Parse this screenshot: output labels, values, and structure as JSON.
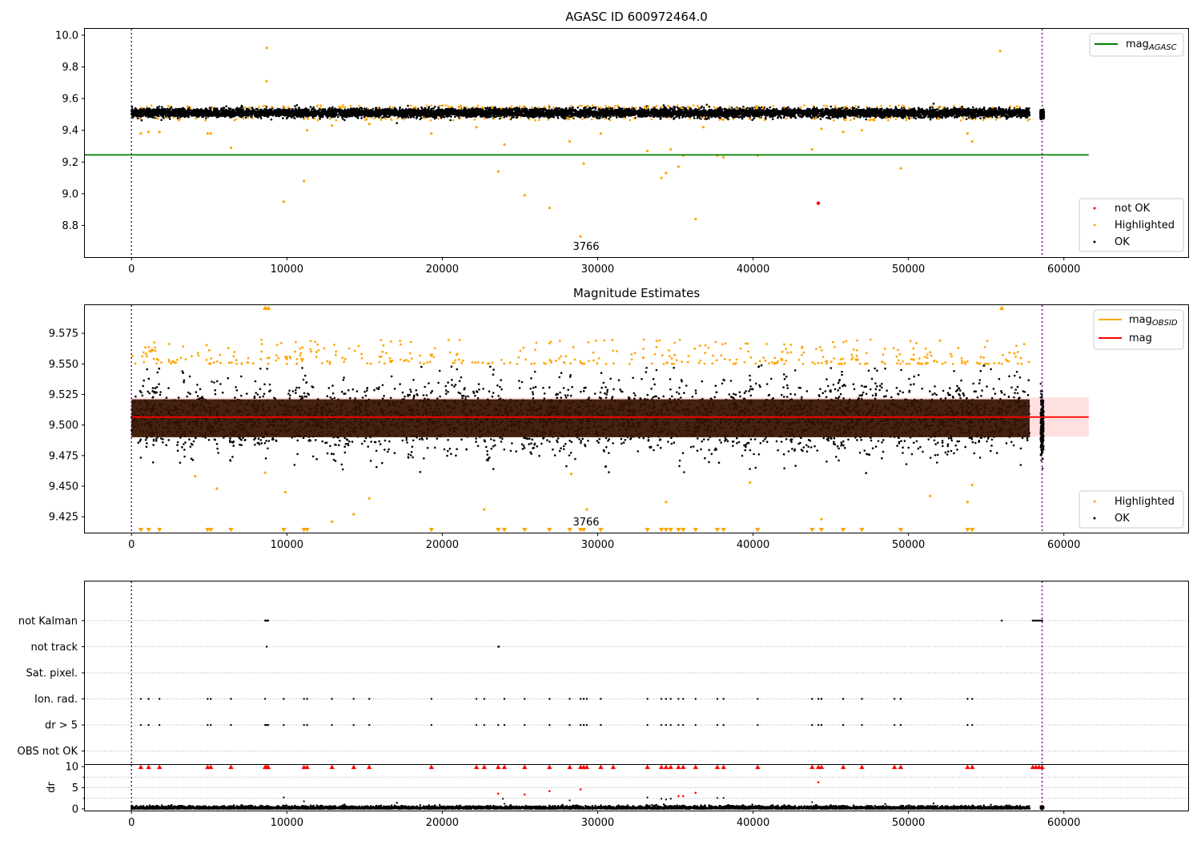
{
  "chart_data": [
    {
      "type": "scatter",
      "title": "AGASC ID 600972464.0",
      "xlabel": "",
      "ylabel": "",
      "xlim": [
        -3000,
        68000
      ],
      "ylim": [
        8.6,
        10.04
      ],
      "xticks": [
        0,
        10000,
        20000,
        30000,
        40000,
        50000,
        60000
      ],
      "yticks": [
        8.8,
        9.0,
        9.2,
        9.4,
        9.6,
        9.8,
        10.0
      ],
      "annotation": {
        "text": "3766",
        "x": 29300,
        "y": 8.68
      },
      "vlines": [
        0,
        58600
      ],
      "hline": {
        "name": "mag_AGASC",
        "y": 9.245,
        "xmin": -3000,
        "xmax": 61600,
        "color": "#008000"
      },
      "band": {
        "xmin": 0,
        "xmax": 57800,
        "center": 9.51,
        "half_width": 0.03
      },
      "cluster": {
        "x": 58600,
        "center": 9.5,
        "half_width": 0.03
      },
      "series": [
        {
          "name": "not OK",
          "color": "#ff0000",
          "points": [
            [
              44200,
              8.94
            ]
          ]
        },
        {
          "name": "Highlighted",
          "color": "#ffa500",
          "points": [
            [
              8700,
              9.92
            ],
            [
              8700,
              9.71
            ],
            [
              55900,
              9.9
            ],
            [
              9800,
              8.95
            ],
            [
              11100,
              9.08
            ],
            [
              23600,
              9.14
            ],
            [
              25300,
              8.99
            ],
            [
              26900,
              8.91
            ],
            [
              28900,
              8.73
            ],
            [
              29100,
              9.19
            ],
            [
              33200,
              9.27
            ],
            [
              34100,
              9.1
            ],
            [
              34400,
              9.13
            ],
            [
              34700,
              9.28
            ],
            [
              35200,
              9.17
            ],
            [
              35500,
              9.24
            ],
            [
              36300,
              8.84
            ],
            [
              37700,
              9.24
            ],
            [
              38100,
              9.23
            ],
            [
              40300,
              9.24
            ],
            [
              43800,
              9.28
            ],
            [
              49500,
              9.16
            ],
            [
              6400,
              9.29
            ],
            [
              24000,
              9.31
            ],
            [
              28200,
              9.33
            ],
            [
              30200,
              9.38
            ],
            [
              36800,
              9.42
            ],
            [
              45800,
              9.39
            ],
            [
              47000,
              9.4
            ],
            [
              53800,
              9.38
            ],
            [
              54100,
              9.33
            ],
            [
              19300,
              9.38
            ],
            [
              4900,
              9.38
            ],
            [
              5100,
              9.38
            ],
            [
              600,
              9.38
            ],
            [
              1100,
              9.39
            ],
            [
              1800,
              9.39
            ],
            [
              11300,
              9.4
            ],
            [
              12900,
              9.43
            ],
            [
              15300,
              9.44
            ],
            [
              22200,
              9.42
            ],
            [
              44400,
              9.41
            ]
          ]
        }
      ]
    },
    {
      "type": "scatter",
      "title": "Magnitude Estimates",
      "xlabel": "",
      "ylabel": "",
      "xlim": [
        -3000,
        68000
      ],
      "ylim": [
        9.412,
        9.598
      ],
      "xticks": [
        0,
        10000,
        20000,
        30000,
        40000,
        50000,
        60000
      ],
      "yticks": [
        9.425,
        9.45,
        9.475,
        9.5,
        9.525,
        9.55,
        9.575
      ],
      "annotation": {
        "text": "3766",
        "x": 29300,
        "y": 9.4165
      },
      "vlines": [
        0,
        58600
      ],
      "hline": {
        "name": "mag",
        "y": 9.5065,
        "xmin": 0,
        "xmax": 61600,
        "color": "#ff0000"
      },
      "band": {
        "xmin": 0,
        "xmax": 61600,
        "center": 9.5065,
        "half_width": 0.016,
        "color": "#ffcccc"
      },
      "dense_band": {
        "xmin": 0,
        "xmax": 57800,
        "center": 9.506,
        "half_width": 0.018,
        "color": "#331100"
      },
      "legend_line": {
        "name": "mag_OBSID",
        "color": "#ffa500"
      },
      "series": [
        {
          "name": "Highlighted",
          "color": "#ffa500",
          "points": [
            [
              5500,
              9.448
            ],
            [
              9900,
              9.445
            ],
            [
              14300,
              9.427
            ],
            [
              15300,
              9.44
            ],
            [
              12900,
              9.421
            ],
            [
              22700,
              9.431
            ],
            [
              29300,
              9.431
            ],
            [
              34400,
              9.437
            ],
            [
              44400,
              9.423
            ],
            [
              51400,
              9.442
            ],
            [
              53800,
              9.437
            ],
            [
              54100,
              9.451
            ],
            [
              8600,
              9.461
            ],
            [
              28300,
              9.46
            ],
            [
              4100,
              9.458
            ],
            [
              39800,
              9.453
            ]
          ]
        },
        {
          "name": "Highlighted-floor",
          "color": "#ffa500",
          "points": [
            [
              600,
              9.414
            ],
            [
              1100,
              9.414
            ],
            [
              1800,
              9.414
            ],
            [
              4900,
              9.414
            ],
            [
              5100,
              9.414
            ],
            [
              6400,
              9.414
            ],
            [
              9800,
              9.414
            ],
            [
              11100,
              9.414
            ],
            [
              11300,
              9.414
            ],
            [
              19300,
              9.414
            ],
            [
              23600,
              9.414
            ],
            [
              24000,
              9.414
            ],
            [
              25300,
              9.414
            ],
            [
              26900,
              9.414
            ],
            [
              28200,
              9.414
            ],
            [
              28900,
              9.414
            ],
            [
              29100,
              9.414
            ],
            [
              30200,
              9.414
            ],
            [
              33200,
              9.414
            ],
            [
              34100,
              9.414
            ],
            [
              34400,
              9.414
            ],
            [
              34700,
              9.414
            ],
            [
              35200,
              9.414
            ],
            [
              35500,
              9.414
            ],
            [
              36300,
              9.414
            ],
            [
              37700,
              9.414
            ],
            [
              38100,
              9.414
            ],
            [
              40300,
              9.414
            ],
            [
              43800,
              9.414
            ],
            [
              44400,
              9.414
            ],
            [
              45800,
              9.414
            ],
            [
              47000,
              9.414
            ],
            [
              49500,
              9.414
            ],
            [
              53800,
              9.414
            ],
            [
              54100,
              9.414
            ]
          ]
        },
        {
          "name": "Highlighted-ceiling",
          "color": "#ffa500",
          "points": [
            [
              8600,
              9.596
            ],
            [
              8800,
              9.596
            ],
            [
              56000,
              9.596
            ]
          ]
        }
      ]
    },
    {
      "type": "scatter",
      "title": "",
      "xlabel": "",
      "ylabel": "",
      "xlim": [
        -3000,
        68000
      ],
      "ylim": [
        -0.5,
        6.5
      ],
      "xticks": [
        0,
        10000,
        20000,
        30000,
        40000,
        50000,
        60000
      ],
      "categories": [
        "OBS not OK",
        "dr > 5",
        "Ion. rad.",
        "Sat. pixel.",
        "not track",
        "not Kalman"
      ],
      "vlines": [
        0,
        58600
      ],
      "rows": {
        "not Kalman": [
          8600,
          8650,
          8700,
          8750,
          8800,
          56000,
          58000,
          58100,
          58200,
          58300,
          58400,
          58500,
          58600
        ],
        "not track": [
          8700,
          23600,
          23650
        ],
        "Sat. pixel.": [],
        "Ion. rad.": [
          600,
          1100,
          1800,
          4900,
          5100,
          6400,
          8600,
          9800,
          11100,
          11300,
          12900,
          14300,
          15300,
          19300,
          22200,
          22700,
          24000,
          25300,
          26900,
          28200,
          28900,
          29100,
          29300,
          30200,
          33200,
          34100,
          34400,
          34700,
          35200,
          35500,
          36300,
          37700,
          38100,
          40300,
          43800,
          44200,
          44400,
          45800,
          47000,
          49100,
          49500,
          53800,
          54100
        ],
        "dr > 5": [
          600,
          1100,
          1800,
          4900,
          5100,
          6400,
          8600,
          8700,
          8800,
          9800,
          11100,
          11300,
          12900,
          14300,
          15300,
          19300,
          22200,
          22700,
          23600,
          24000,
          25300,
          26900,
          28200,
          28900,
          29100,
          29300,
          30200,
          33200,
          34100,
          34400,
          34700,
          35200,
          35500,
          36300,
          37700,
          38100,
          40300,
          43800,
          44200,
          44400,
          45800,
          47000,
          49100,
          49500,
          53800,
          54100
        ],
        "OBS not OK": []
      }
    },
    {
      "type": "scatter",
      "title": "",
      "xlabel": "",
      "ylabel": "dr",
      "xlim": [
        -3000,
        68000
      ],
      "ylim": [
        -0.4,
        10.4
      ],
      "xticks": [
        0,
        10000,
        20000,
        30000,
        40000,
        50000,
        60000
      ],
      "yticks": [
        0,
        5,
        10
      ],
      "vlines": [
        0,
        58600
      ],
      "series": [
        {
          "name": "dr-capped",
          "color": "#ff0000",
          "points": [
            [
              600,
              10
            ],
            [
              1100,
              10
            ],
            [
              1800,
              10
            ],
            [
              4900,
              10
            ],
            [
              5100,
              10
            ],
            [
              6400,
              10
            ],
            [
              8600,
              10
            ],
            [
              8700,
              10
            ],
            [
              8800,
              10
            ],
            [
              11100,
              10
            ],
            [
              11300,
              10
            ],
            [
              12900,
              10
            ],
            [
              14300,
              10
            ],
            [
              15300,
              10
            ],
            [
              19300,
              10
            ],
            [
              22200,
              10
            ],
            [
              22700,
              10
            ],
            [
              23600,
              10
            ],
            [
              24000,
              10
            ],
            [
              25300,
              10
            ],
            [
              26900,
              10
            ],
            [
              28200,
              10
            ],
            [
              28900,
              10
            ],
            [
              29100,
              10
            ],
            [
              29300,
              10
            ],
            [
              30200,
              10
            ],
            [
              31000,
              10
            ],
            [
              33200,
              10
            ],
            [
              34100,
              10
            ],
            [
              34400,
              10
            ],
            [
              34700,
              10
            ],
            [
              35200,
              10
            ],
            [
              35500,
              10
            ],
            [
              36300,
              10
            ],
            [
              37700,
              10
            ],
            [
              38100,
              10
            ],
            [
              40300,
              10
            ],
            [
              43800,
              10
            ],
            [
              44200,
              10
            ],
            [
              44400,
              10
            ],
            [
              45800,
              10
            ],
            [
              47000,
              10
            ],
            [
              49100,
              10
            ],
            [
              49500,
              10
            ],
            [
              53800,
              10
            ],
            [
              54100,
              10
            ],
            [
              58000,
              10
            ],
            [
              58200,
              10
            ],
            [
              58400,
              10
            ],
            [
              58600,
              10
            ]
          ]
        },
        {
          "name": "dr-red",
          "color": "#ff0000",
          "points": [
            [
              23600,
              3.6
            ],
            [
              25300,
              3.4
            ],
            [
              26900,
              4.2
            ],
            [
              28900,
              4.6
            ],
            [
              35200,
              3.0
            ],
            [
              35500,
              3.0
            ],
            [
              36300,
              3.8
            ],
            [
              44200,
              6.3
            ]
          ]
        },
        {
          "name": "dr-black",
          "color": "#000000",
          "points": [
            [
              9800,
              2.7
            ],
            [
              11100,
              1.8
            ],
            [
              23900,
              2.4
            ],
            [
              28200,
              2.0
            ],
            [
              33200,
              2.7
            ],
            [
              34100,
              2.4
            ],
            [
              34400,
              2.2
            ],
            [
              34700,
              2.4
            ],
            [
              37700,
              2.6
            ],
            [
              38100,
              2.6
            ],
            [
              43800,
              1.6
            ],
            [
              24000,
              1.2
            ]
          ]
        }
      ]
    }
  ],
  "legend1": {
    "line_label_main": "mag",
    "line_label_sub": "AGASC",
    "not_ok": "not OK",
    "highlighted": "Highlighted",
    "ok": "OK"
  },
  "legend2": {
    "line1_main": "mag",
    "line1_sub": "OBSID",
    "line2": "mag",
    "highlighted": "Highlighted",
    "ok": "OK"
  },
  "colors": {
    "ok": "#000000",
    "highlighted": "#ffa500",
    "not_ok": "#ff0000",
    "agasc_line": "#008000",
    "obsid_line": "#ffa500",
    "mag_line": "#ff0000",
    "vline": "#800080"
  }
}
